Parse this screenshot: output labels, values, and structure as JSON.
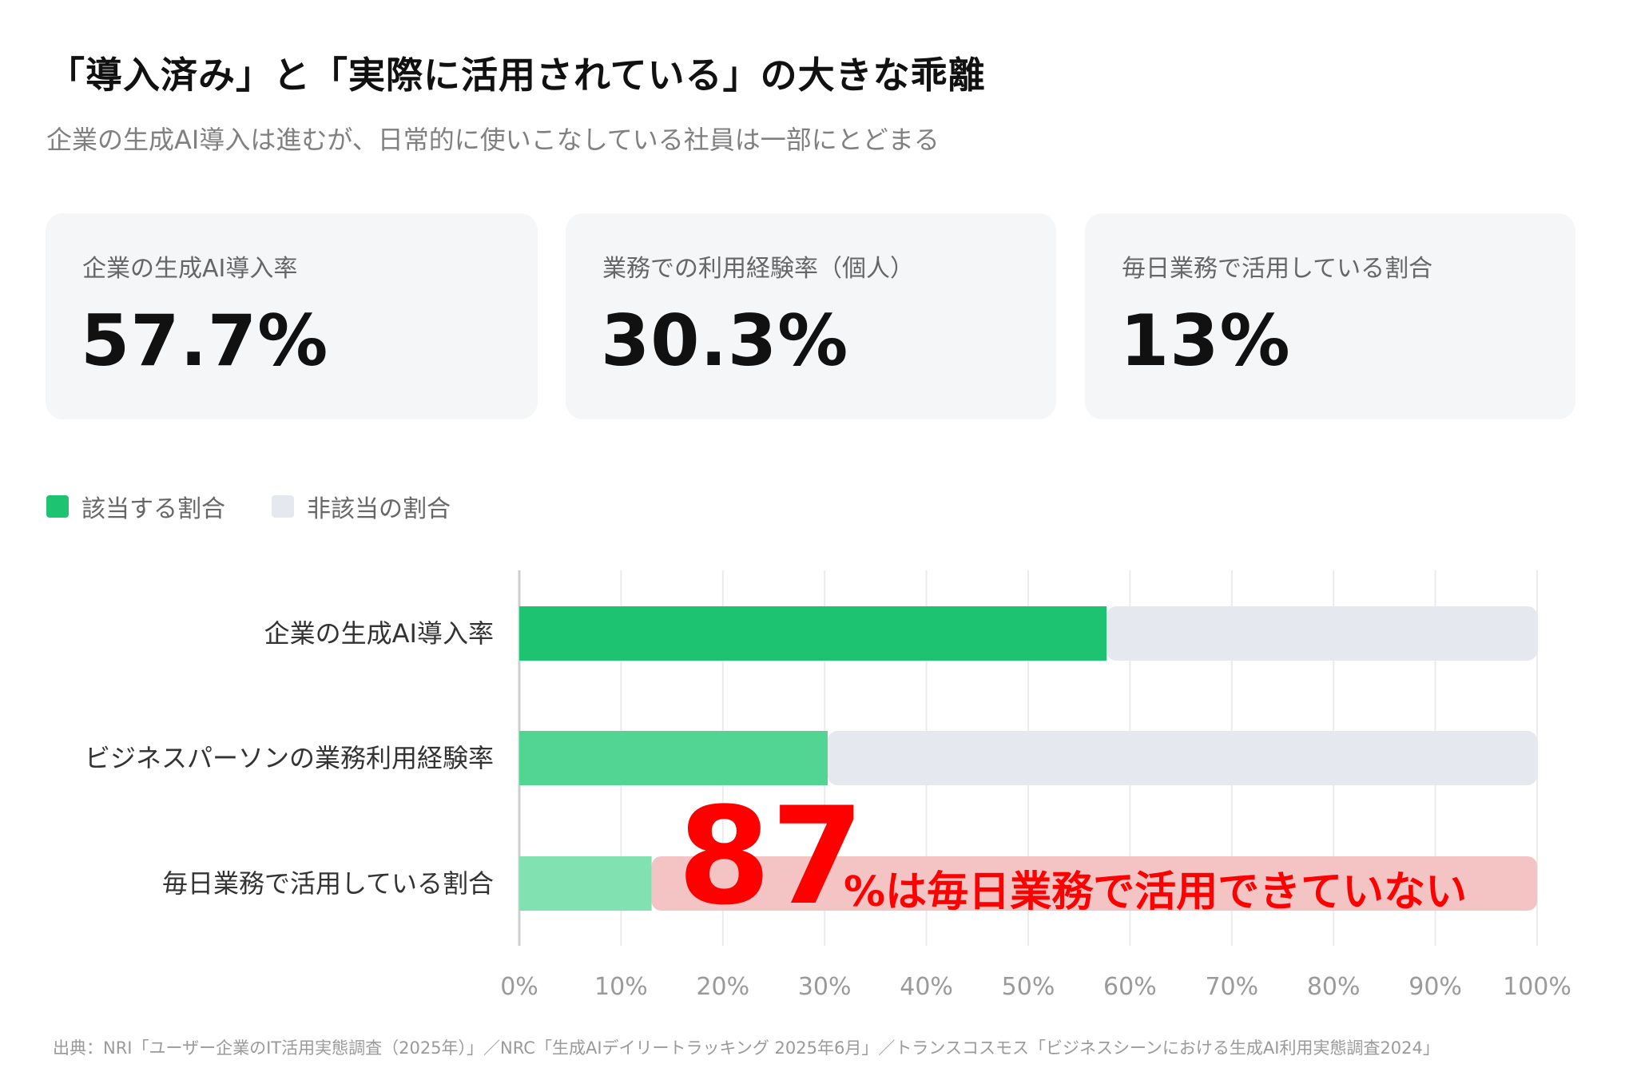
{
  "title": "「導入済み」と「実際に活用されている」の大きな乖離",
  "subtitle": "企業の生成AI導入は進むが、日常的に使いこなしている社員は一部にとどまる",
  "cards": [
    {
      "label": "企業の生成AI導入率",
      "value": "57.7%"
    },
    {
      "label": "業務での利用経験率（個人）",
      "value": "30.3%"
    },
    {
      "label": "毎日業務で活用している割合",
      "value": "13%"
    }
  ],
  "legend": [
    {
      "label": "該当する割合",
      "color": "#1dc371"
    },
    {
      "label": "非該当の割合",
      "color": "#e5e8ee"
    }
  ],
  "chart_data": {
    "type": "bar",
    "orientation": "horizontal",
    "stacked": true,
    "categories": [
      "企業の生成AI導入率",
      "ビジネスパーソンの業務利用経験率",
      "毎日業務で活用している割合"
    ],
    "series": [
      {
        "name": "該当する割合",
        "values": [
          57.7,
          30.3,
          13
        ],
        "colors": [
          "#1dc371",
          "#52d592",
          "#82e1b0"
        ]
      },
      {
        "name": "非該当の割合",
        "values": [
          42.3,
          69.7,
          87
        ],
        "color": "#e5e8ee"
      }
    ],
    "xlim": [
      0,
      100
    ],
    "xticks": [
      "0%",
      "10%",
      "20%",
      "30%",
      "40%",
      "50%",
      "60%",
      "70%",
      "80%",
      "90%",
      "100%"
    ],
    "grid": true,
    "highlight": {
      "bar_index": 2,
      "color": "#f4c4c4"
    },
    "annotation": {
      "number": "87",
      "text": "%は毎日業務で活用できていない",
      "color": "#ff0000"
    }
  },
  "source": "出典：NRI「ユーザー企業のIT活用実態調査（2025年）」／NRC「生成AIデイリートラッキング 2025年6月」／トランスコスモス「ビジネスシーンにおける生成AI利用実態調査2024」"
}
